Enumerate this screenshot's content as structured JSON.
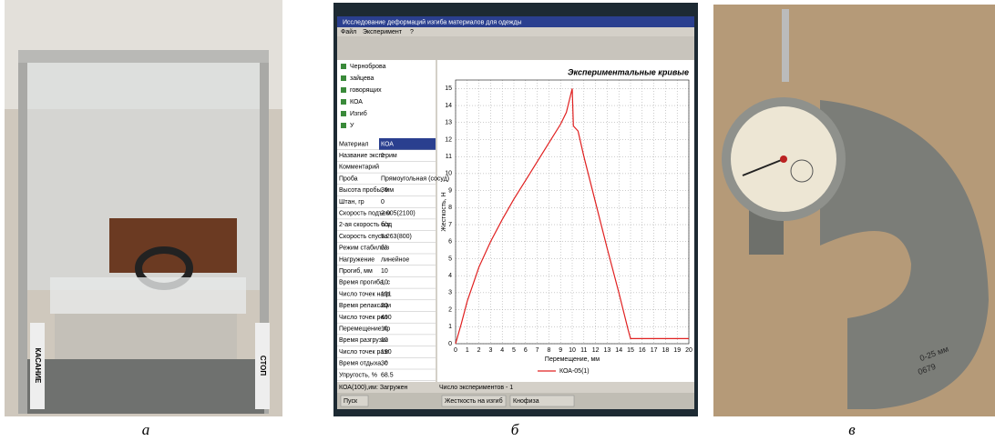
{
  "panels": [
    {
      "caption": "а",
      "labels": [
        "КАСАНИЕ",
        "СТОП"
      ]
    },
    {
      "caption": "б",
      "window_title": "Исследование деформаций изгиба материалов для одежды",
      "menu": [
        "Файл",
        "Эксперимент",
        "?"
      ],
      "tree": [
        "Черноброва",
        "зайцева",
        "говорящих",
        "КОА",
        "Изгиб",
        "У"
      ],
      "table": {
        "rows": [
          [
            "Материал",
            "КОА"
          ],
          [
            "Название эксперим",
            "1"
          ],
          [
            "Комментарий",
            ""
          ],
          [
            "Проба",
            "Прямоугольная (сосуд)"
          ],
          [
            "Высота пробы, мм",
            "30"
          ],
          [
            "Штан, гр",
            "0"
          ],
          [
            "Скорость подъем",
            "2.005(2100)"
          ],
          [
            "2-ая скорость под",
            "б/з"
          ],
          [
            "Скорость спуска",
            "5.263(800)"
          ],
          [
            "Режим стабилиз",
            "б/з"
          ],
          [
            "Нагружение",
            "линейное"
          ],
          [
            "Прогиб, мм",
            "10"
          ],
          [
            "Время прогиба, с",
            "10"
          ],
          [
            "Число точек нагр",
            "191"
          ],
          [
            "Время релаксаци",
            "20"
          ],
          [
            "Число точек рел",
            "400"
          ],
          [
            "Перемещение пр",
            "10"
          ],
          [
            "Время разгрузки",
            "10"
          ],
          [
            "Число точек разг",
            "190"
          ],
          [
            "Время отдыха, с",
            "30"
          ],
          [
            "Упругость, %",
            "68.5"
          ]
        ]
      },
      "status": [
        "КОА(100),им: Загружен",
        "Число экспериментов - 1"
      ],
      "taskbar": [
        "Пуск",
        "Жесткость на изгиб",
        "Кнофиза"
      ]
    },
    {
      "caption": "в",
      "labels": [
        "0-25 мм",
        "0679"
      ]
    }
  ],
  "chart_data": {
    "type": "line",
    "title": "Экспериментальные кривые",
    "x_label": "Перемещение, мм",
    "y_label": "Жесткость, Н",
    "xlim": [
      0,
      20
    ],
    "ylim": [
      0,
      15.5
    ],
    "xticks": [
      0,
      1,
      2,
      3,
      4,
      5,
      6,
      7,
      8,
      9,
      10,
      11,
      12,
      13,
      14,
      15,
      16,
      17,
      18,
      19,
      20
    ],
    "yticks": [
      0,
      1,
      2,
      3,
      4,
      5,
      6,
      7,
      8,
      9,
      10,
      11,
      12,
      13,
      14,
      15
    ],
    "grid": true,
    "series": [
      {
        "name": "КОА-05(1)",
        "color": "#e02020",
        "x": [
          0,
          0.5,
          1,
          1.5,
          2,
          3,
          4,
          5,
          6,
          7,
          8,
          9,
          9.5,
          10,
          10.1,
          10.5,
          11,
          12,
          13,
          14,
          14.8,
          15,
          16,
          17,
          18,
          19,
          20
        ],
        "values": [
          0,
          1.2,
          2.5,
          3.5,
          4.5,
          6,
          7.3,
          8.5,
          9.6,
          10.7,
          11.8,
          12.9,
          13.6,
          15,
          12.8,
          12.5,
          11,
          8.3,
          5.6,
          3,
          0.8,
          0.3,
          0.3,
          0.3,
          0.3,
          0.3,
          0.3
        ]
      }
    ]
  }
}
